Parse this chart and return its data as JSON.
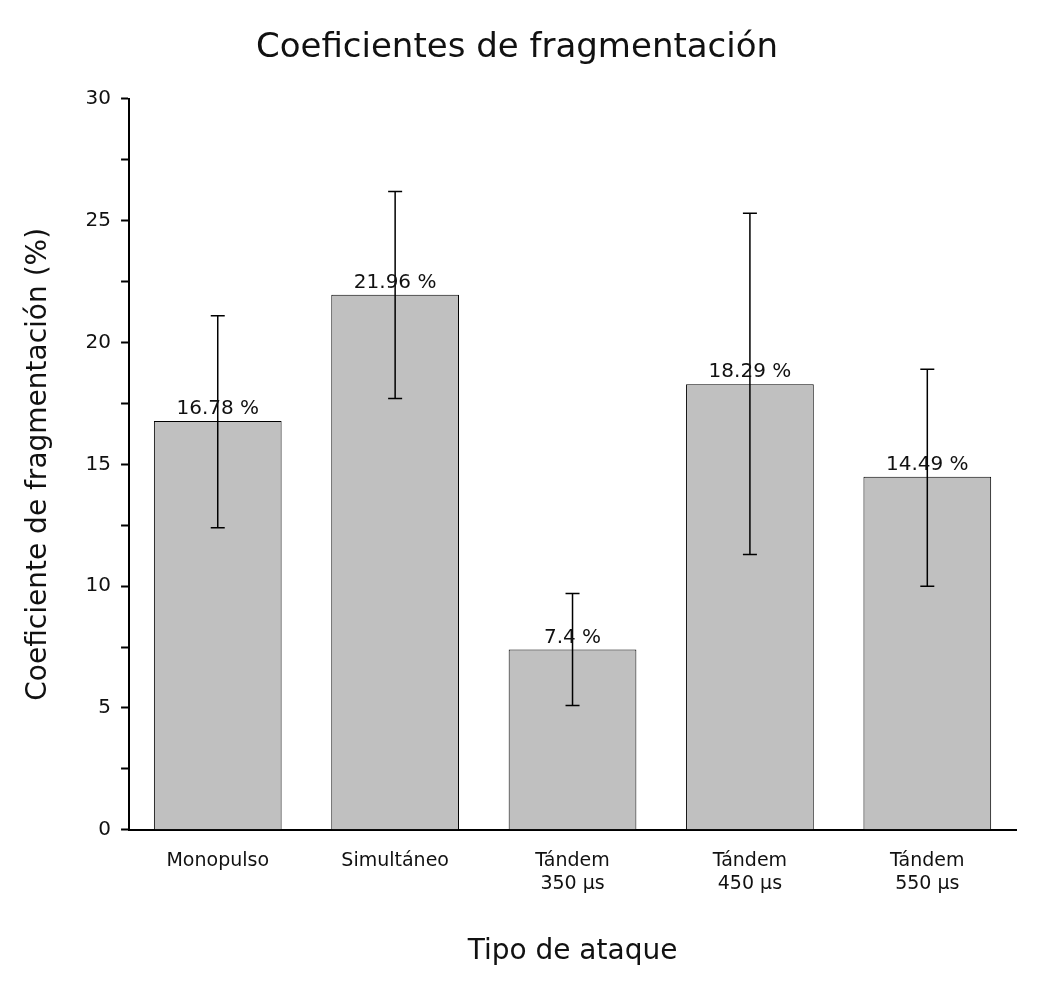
{
  "chart_data": {
    "type": "bar",
    "title": "Coeficientes de fragmentación",
    "xlabel": "Tipo de ataque",
    "ylabel": "Coeficiente de fragmentación (%)",
    "categories": [
      "Monopulso",
      "Simultáneo",
      "Tándem\n350 µs",
      "Tándem\n450 µs",
      "Tándem\n550 µs"
    ],
    "values": [
      16.78,
      21.96,
      7.4,
      18.29,
      14.49
    ],
    "value_labels": [
      "16.78 %",
      "21.96 %",
      "7.4 %",
      "18.29 %",
      "14.49 %"
    ],
    "errors": [
      [
        12.4,
        21.1
      ],
      [
        17.7,
        26.2
      ],
      [
        5.1,
        9.7
      ],
      [
        11.3,
        25.3
      ],
      [
        10.0,
        18.9
      ]
    ],
    "color": "#c0c0c0",
    "ylim": [
      0,
      30
    ],
    "yticks": [
      0,
      {
        "value": 2.5,
        "label": null
      },
      5,
      {
        "value": 7.5,
        "label": null
      },
      10,
      {
        "value": 12.5,
        "label": null
      },
      15,
      {
        "value": 17.5,
        "label": null
      },
      20,
      {
        "value": 22.5,
        "label": null
      },
      25,
      {
        "value": 27.5,
        "label": null
      },
      30
    ],
    "grid": false,
    "legend": false
  }
}
